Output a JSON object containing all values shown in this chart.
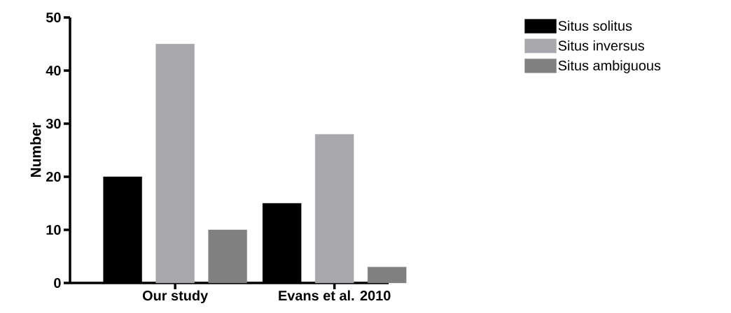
{
  "chart_data": {
    "type": "bar",
    "ylabel": "Number",
    "categories": [
      "Our study",
      "Evans et al. 2010"
    ],
    "series": [
      {
        "name": "Situs solitus",
        "color": "#000000",
        "values": [
          20,
          15
        ]
      },
      {
        "name": "Situs inversus",
        "color": "#a8a8ac",
        "values": [
          45,
          28
        ]
      },
      {
        "name": "Situs ambiguous",
        "color": "#808080",
        "values": [
          10,
          3
        ]
      }
    ],
    "ylim": [
      0,
      50
    ],
    "yticks": [
      0,
      10,
      20,
      30,
      40,
      50
    ],
    "legend": "top right"
  }
}
